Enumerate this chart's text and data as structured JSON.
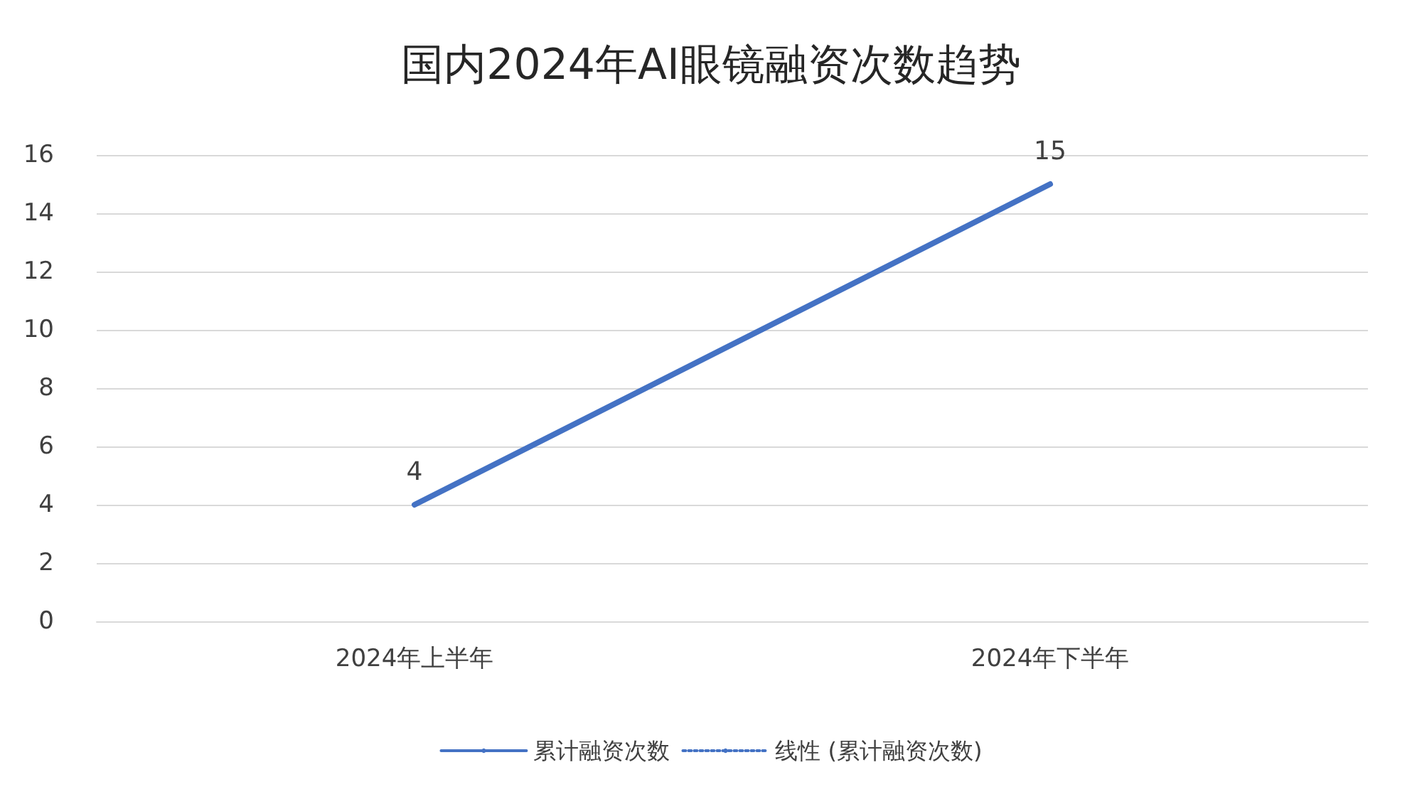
{
  "chart_data": {
    "type": "line",
    "title": "国内2024年AI眼镜融资次数趋势",
    "categories": [
      "2024年上半年",
      "2024年下半年"
    ],
    "series": [
      {
        "name": "累计融资次数",
        "color": "#4472c4",
        "values": [
          4,
          15
        ],
        "data_labels": true,
        "line_style": "solid"
      },
      {
        "name": "线性 (累计融资次数)",
        "color": "#4472c4",
        "values": [
          null,
          null
        ],
        "line_style": "dotted"
      }
    ],
    "ylim": [
      0,
      16
    ],
    "yticks": [
      0,
      2,
      4,
      6,
      8,
      10,
      12,
      14,
      16
    ],
    "grid": "y",
    "legend": "bottom",
    "marker": "none"
  }
}
